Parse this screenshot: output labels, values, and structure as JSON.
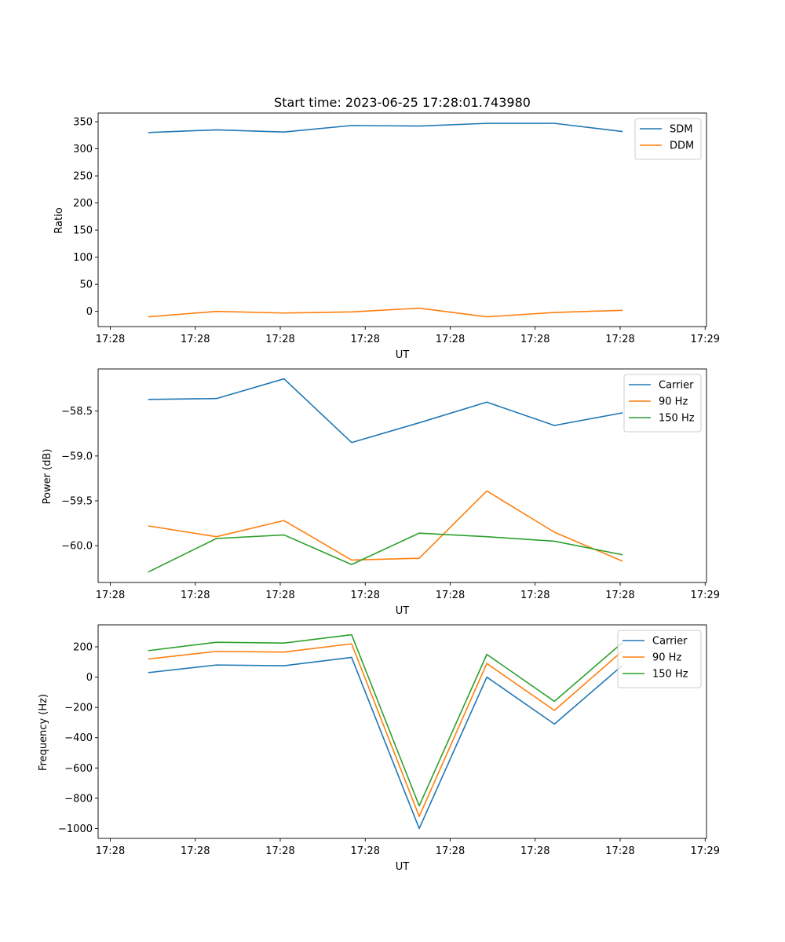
{
  "chart_data": [
    {
      "type": "line",
      "title": "Start time: 2023-06-25 17:28:01.743980",
      "xlabel": "UT",
      "ylabel": "Ratio",
      "x_tick_labels": [
        "17:28",
        "17:28",
        "17:28",
        "17:28",
        "17:28",
        "17:28",
        "17:28",
        "17:29"
      ],
      "x": [
        1,
        2,
        3,
        4,
        5,
        6,
        7,
        8
      ],
      "xlim": [
        0.25,
        9.25
      ],
      "ylim": [
        -28,
        366
      ],
      "y_ticks": [
        0,
        50,
        100,
        150,
        200,
        250,
        300,
        350
      ],
      "y_tick_labels": [
        "0",
        "50",
        "100",
        "150",
        "200",
        "250",
        "300",
        "350"
      ],
      "legend": "top-right",
      "series": [
        {
          "name": "SDM",
          "color": "#1f77b4",
          "values": [
            330,
            335,
            331,
            343,
            342,
            347,
            347,
            332
          ]
        },
        {
          "name": "DDM",
          "color": "#ff7f0e",
          "values": [
            -10,
            0,
            -3,
            -1,
            6,
            -10,
            -2,
            2
          ]
        }
      ]
    },
    {
      "type": "line",
      "title": "",
      "xlabel": "UT",
      "ylabel": "Power (dB)",
      "x_tick_labels": [
        "17:28",
        "17:28",
        "17:28",
        "17:28",
        "17:28",
        "17:28",
        "17:28",
        "17:29"
      ],
      "x": [
        1,
        2,
        3,
        4,
        5,
        6,
        7,
        8
      ],
      "xlim": [
        0.25,
        9.25
      ],
      "ylim": [
        -60.41,
        -58.03
      ],
      "y_ticks": [
        -58.5,
        -59.0,
        -59.5,
        -60.0
      ],
      "y_tick_labels": [
        "−58.5",
        "−59.0",
        "−59.5",
        "−60.0"
      ],
      "legend": "top-right",
      "series": [
        {
          "name": "Carrier",
          "color": "#1f77b4",
          "values": [
            -58.37,
            -58.36,
            -58.14,
            -58.85,
            -58.63,
            -58.4,
            -58.66,
            -58.52
          ]
        },
        {
          "name": "90 Hz",
          "color": "#ff7f0e",
          "values": [
            -59.78,
            -59.9,
            -59.72,
            -60.16,
            -60.14,
            -59.39,
            -59.85,
            -60.17
          ]
        },
        {
          "name": "150 Hz",
          "color": "#2ca02c",
          "values": [
            -60.29,
            -59.92,
            -59.88,
            -60.21,
            -59.86,
            -59.9,
            -59.95,
            -60.1
          ]
        }
      ]
    },
    {
      "type": "line",
      "title": "",
      "xlabel": "UT",
      "ylabel": "Frequency (Hz)",
      "x_tick_labels": [
        "17:28",
        "17:28",
        "17:28",
        "17:28",
        "17:28",
        "17:28",
        "17:28",
        "17:29"
      ],
      "x": [
        1,
        2,
        3,
        4,
        5,
        6,
        7,
        8
      ],
      "xlim": [
        0.25,
        9.25
      ],
      "ylim": [
        -1065,
        345
      ],
      "y_ticks": [
        200,
        0,
        -200,
        -400,
        -600,
        -800,
        -1000
      ],
      "y_tick_labels": [
        "200",
        "0",
        "−200",
        "−400",
        "−600",
        "−800",
        "−1000"
      ],
      "legend": "top-right",
      "series": [
        {
          "name": "Carrier",
          "color": "#1f77b4",
          "values": [
            30,
            80,
            75,
            130,
            -1000,
            0,
            -310,
            75
          ]
        },
        {
          "name": "90 Hz",
          "color": "#ff7f0e",
          "values": [
            120,
            170,
            165,
            220,
            -920,
            90,
            -220,
            170
          ]
        },
        {
          "name": "150 Hz",
          "color": "#2ca02c",
          "values": [
            175,
            230,
            225,
            280,
            -850,
            150,
            -160,
            225
          ]
        }
      ]
    }
  ]
}
